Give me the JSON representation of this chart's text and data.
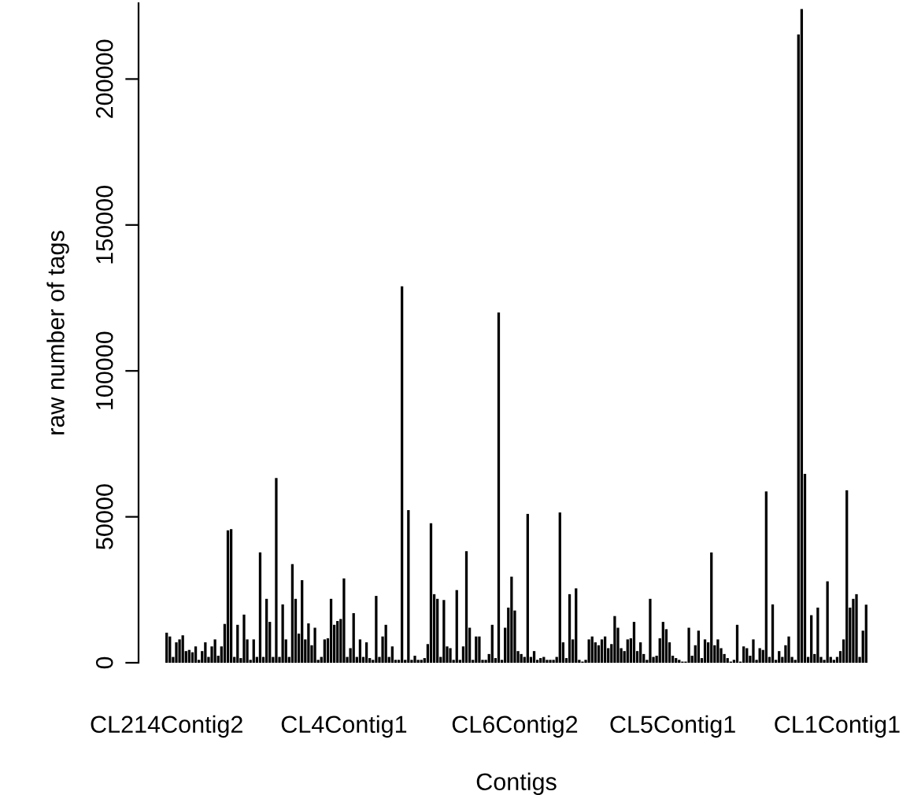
{
  "chart_data": {
    "type": "bar",
    "xlabel": "Contigs",
    "ylabel": "raw number of tags",
    "categories": [
      "CL214Contig2",
      null,
      null,
      null,
      null,
      null,
      null,
      null,
      null,
      null,
      null,
      null,
      null,
      null,
      null,
      null,
      null,
      null,
      null,
      null,
      null,
      null,
      null,
      null,
      null,
      null,
      null,
      null,
      null,
      null,
      null,
      null,
      null,
      null,
      null,
      null,
      null,
      null,
      null,
      null,
      null,
      null,
      null,
      null,
      null,
      null,
      null,
      null,
      null,
      null,
      null,
      null,
      null,
      null,
      null,
      "CL4Contig1",
      null,
      null,
      null,
      null,
      null,
      null,
      null,
      null,
      null,
      null,
      null,
      null,
      null,
      null,
      null,
      null,
      null,
      null,
      null,
      null,
      null,
      null,
      null,
      null,
      null,
      null,
      null,
      null,
      null,
      null,
      null,
      null,
      null,
      null,
      null,
      null,
      null,
      null,
      null,
      null,
      null,
      null,
      null,
      null,
      null,
      null,
      null,
      null,
      null,
      null,
      null,
      null,
      "CL6Contig2",
      null,
      null,
      null,
      null,
      null,
      null,
      null,
      null,
      null,
      null,
      null,
      null,
      null,
      null,
      null,
      null,
      null,
      null,
      null,
      null,
      null,
      null,
      null,
      null,
      null,
      null,
      null,
      null,
      null,
      null,
      null,
      null,
      null,
      null,
      null,
      null,
      null,
      null,
      null,
      null,
      null,
      null,
      null,
      null,
      null,
      null,
      null,
      null,
      "CL5Contig1",
      null,
      null,
      null,
      null,
      null,
      null,
      null,
      null,
      null,
      null,
      null,
      null,
      null,
      null,
      null,
      null,
      null,
      null,
      null,
      null,
      null,
      null,
      null,
      null,
      null,
      null,
      null,
      null,
      null,
      null,
      null,
      null,
      null,
      null,
      null,
      null,
      null,
      null,
      null,
      null,
      null,
      null,
      null,
      null,
      null,
      null,
      null,
      null,
      null,
      null,
      "CL1Contig1",
      null,
      null,
      null,
      null,
      null,
      null,
      null,
      null,
      null
    ],
    "values": [
      10300,
      9000,
      2000,
      7000,
      8000,
      9400,
      4000,
      4400,
      3600,
      5600,
      1000,
      4000,
      7000,
      2000,
      5600,
      8000,
      2400,
      5600,
      13300,
      45400,
      45800,
      2000,
      13000,
      1600,
      16500,
      8000,
      1000,
      8000,
      2000,
      37800,
      2000,
      21900,
      14000,
      2000,
      63300,
      2000,
      20000,
      8000,
      2000,
      33800,
      21900,
      10000,
      28300,
      8000,
      13500,
      6000,
      12000,
      1000,
      2000,
      8000,
      8400,
      21900,
      13000,
      14300,
      15000,
      28900,
      2000,
      5000,
      17000,
      2000,
      8000,
      2000,
      7000,
      1600,
      1000,
      22900,
      2000,
      9000,
      13000,
      2000,
      5600,
      1000,
      1000,
      129000,
      1000,
      52300,
      1000,
      2400,
      1000,
      1000,
      1600,
      6400,
      47800,
      23500,
      21900,
      2000,
      21500,
      5600,
      5000,
      1000,
      24900,
      1000,
      5600,
      38200,
      12000,
      1000,
      9000,
      9000,
      1000,
      1000,
      3000,
      13000,
      1600,
      120000,
      1000,
      12000,
      18900,
      29500,
      17900,
      4000,
      3000,
      2000,
      51000,
      2000,
      4000,
      1000,
      1600,
      2000,
      1000,
      1000,
      1000,
      2000,
      51500,
      7000,
      1600,
      23500,
      8000,
      25500,
      1000,
      400,
      1000,
      8000,
      9000,
      7000,
      6000,
      8000,
      9000,
      5000,
      6400,
      16000,
      12000,
      5000,
      4000,
      8000,
      8400,
      14000,
      4000,
      7000,
      3000,
      1000,
      21900,
      2000,
      2400,
      8400,
      14000,
      11500,
      7000,
      2400,
      1600,
      1000,
      400,
      400,
      12000,
      2400,
      6000,
      11000,
      1600,
      8000,
      7000,
      37800,
      6000,
      8000,
      5000,
      3000,
      1600,
      400,
      1000,
      13000,
      400,
      5600,
      5000,
      2400,
      8000,
      1000,
      5000,
      4400,
      58700,
      2000,
      20000,
      1000,
      4000,
      2000,
      6000,
      9000,
      2000,
      1000,
      215300,
      224000,
      64700,
      2000,
      16300,
      3000,
      18900,
      2000,
      1000,
      27900,
      2000,
      1000,
      2000,
      4000,
      8000,
      59100,
      18900,
      21900,
      23500,
      2000,
      11000,
      19900
    ],
    "color": "#000000",
    "ylim": [
      0,
      226000
    ],
    "yticks": [
      0,
      50000,
      100000,
      150000,
      200000
    ],
    "grid": false
  }
}
